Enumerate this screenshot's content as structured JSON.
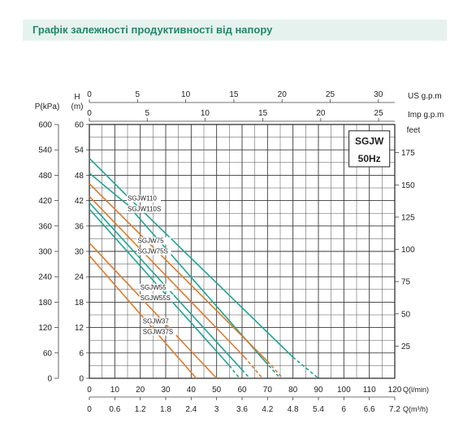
{
  "header": {
    "title": "Графік залежності продуктивності від напору"
  },
  "chart_data": {
    "type": "line",
    "model_title": [
      "SGJW",
      "50Hz"
    ],
    "axes": {
      "left_outer": {
        "label": "P(kPa)",
        "ticks": [
          0,
          60,
          120,
          180,
          240,
          300,
          360,
          420,
          480,
          540,
          600
        ]
      },
      "left_inner": {
        "label_line1": "H",
        "label_line2": "(m)",
        "ticks": [
          0,
          6,
          12,
          18,
          24,
          30,
          36,
          42,
          48,
          54,
          60
        ],
        "range": [
          0,
          60
        ]
      },
      "top_1": {
        "label": "US g.p.m",
        "ticks": [
          0,
          5,
          10,
          15,
          20,
          25,
          30
        ],
        "max_at_lpm": 113.56
      },
      "top_2": {
        "label": "Imp g.p.m",
        "ticks": [
          0,
          5,
          10,
          15,
          20,
          25
        ],
        "max_at_lpm": 113.65
      },
      "right": {
        "label": "feet",
        "ticks": [
          25,
          50,
          75,
          100,
          125,
          150,
          175
        ]
      },
      "bottom_1": {
        "label": "Q(l/min)",
        "ticks": [
          0,
          10,
          20,
          30,
          40,
          50,
          60,
          70,
          80,
          90,
          100,
          110,
          120
        ],
        "range": [
          0,
          120
        ]
      },
      "bottom_2": {
        "label": "Q(m³/h)",
        "ticks": [
          "0",
          "0.6",
          "1.2",
          "1.8",
          "2.4",
          "3",
          "3.6",
          "4.2",
          "4.8",
          "5.4",
          "6",
          "6.6",
          "7.2"
        ]
      }
    },
    "grid": true,
    "colors": {
      "teal": "#1fa597",
      "orange": "#dd7a2c",
      "grid": "#3a3a3a",
      "header_bg": "#e6f2ee",
      "header_text": "#1f8a6a"
    },
    "labels": [
      {
        "text": "SGJW110",
        "q": 15,
        "h": 42
      },
      {
        "text": "SGJW110S",
        "q": 15,
        "h": 39.5
      },
      {
        "text": "SGJW75",
        "q": 19,
        "h": 32
      },
      {
        "text": "SGJW75S",
        "q": 19,
        "h": 29.5
      },
      {
        "text": "SGJW55",
        "q": 20,
        "h": 21
      },
      {
        "text": "SGJW55S",
        "q": 20,
        "h": 18.5
      },
      {
        "text": "SGJW37",
        "q": 21,
        "h": 13
      },
      {
        "text": "SGJW37S",
        "q": 21,
        "h": 10.5
      }
    ],
    "series": [
      {
        "name": "SGJW110",
        "color": "teal",
        "points": [
          [
            0,
            52
          ],
          [
            15,
            43
          ],
          [
            80,
            5
          ]
        ],
        "dashed": [
          [
            80,
            5
          ],
          [
            90,
            0
          ]
        ]
      },
      {
        "name": "SGJW110S",
        "color": "teal",
        "points": [
          [
            0,
            48.5
          ],
          [
            15,
            41
          ],
          [
            69,
            4
          ]
        ],
        "dashed": [
          [
            69,
            4
          ],
          [
            75,
            0
          ]
        ]
      },
      {
        "name": "SGJW75",
        "color": "orange",
        "points": [
          [
            0,
            46
          ],
          [
            70,
            4
          ]
        ],
        "dashed": [
          [
            70,
            4
          ],
          [
            76,
            0
          ]
        ]
      },
      {
        "name": "SGJW75S",
        "color": "orange",
        "points": [
          [
            0,
            43
          ],
          [
            61,
            5
          ]
        ],
        "dashed": [
          [
            61,
            5
          ],
          [
            68,
            0
          ]
        ]
      },
      {
        "name": "SGJW55",
        "color": "teal",
        "points": [
          [
            0,
            41.5
          ],
          [
            60,
            2
          ]
        ],
        "dashed": [
          [
            60,
            2
          ],
          [
            63,
            0
          ]
        ]
      },
      {
        "name": "SGJW55S",
        "color": "teal",
        "points": [
          [
            0,
            40
          ],
          [
            55,
            3
          ]
        ],
        "dashed": [
          [
            55,
            3
          ],
          [
            59,
            0
          ]
        ]
      },
      {
        "name": "SGJW37",
        "color": "orange",
        "points": [
          [
            0,
            32
          ],
          [
            50,
            0
          ]
        ],
        "dashed": []
      },
      {
        "name": "SGJW37S",
        "color": "orange",
        "points": [
          [
            0,
            29
          ],
          [
            42,
            0
          ]
        ],
        "dashed": []
      }
    ]
  }
}
